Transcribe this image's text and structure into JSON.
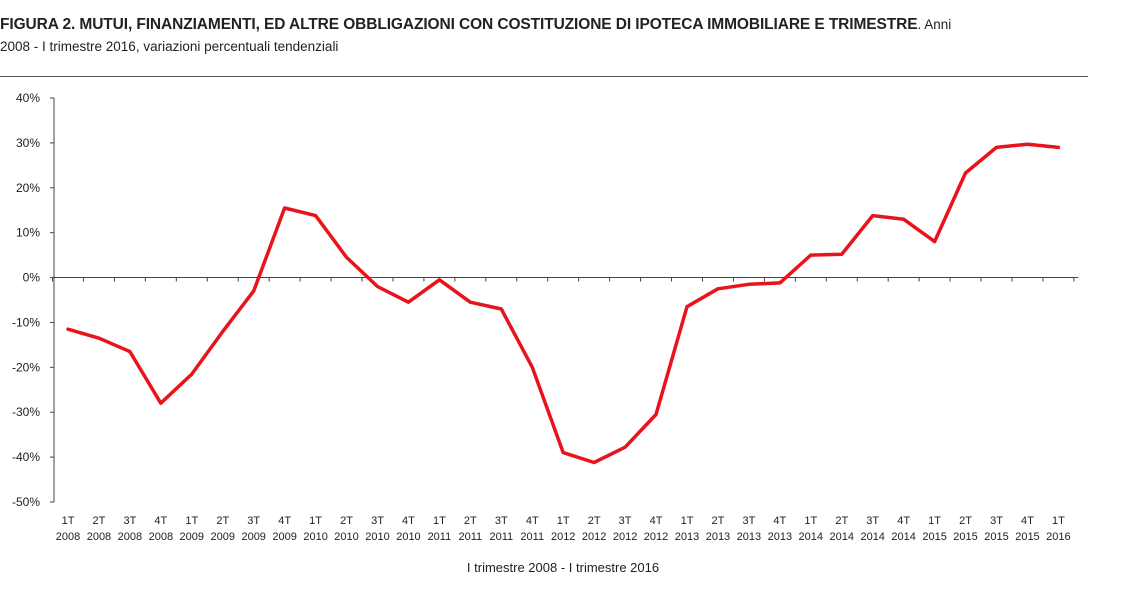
{
  "title_bold": "FIGURA 2. MUTUI, FINANZIAMENTI, ED ALTRE OBBLIGAZIONI CON COSTITUZIONE DI IPOTECA IMMOBILIARE E TRIMESTRE",
  "title_rest": ". Anni",
  "subtitle": "2008 - I trimestre 2016, variazioni percentuali tendenziali",
  "chart_data": {
    "type": "line",
    "xlabel": "I trimestre 2008 - I trimestre 2016",
    "ylabel": "",
    "ylim": [
      -50,
      40
    ],
    "yticks": [
      "40%",
      "30%",
      "20%",
      "10%",
      "0%",
      "-10%",
      "-20%",
      "-30%",
      "-40%",
      "-50%"
    ],
    "ytick_values": [
      40,
      30,
      20,
      10,
      0,
      -10,
      -20,
      -30,
      -40,
      -50
    ],
    "grid": false,
    "line_color": "#e8141c",
    "categories": [
      [
        "1T",
        "2008"
      ],
      [
        "2T",
        "2008"
      ],
      [
        "3T",
        "2008"
      ],
      [
        "4T",
        "2008"
      ],
      [
        "1T",
        "2009"
      ],
      [
        "2T",
        "2009"
      ],
      [
        "3T",
        "2009"
      ],
      [
        "4T",
        "2009"
      ],
      [
        "1T",
        "2010"
      ],
      [
        "2T",
        "2010"
      ],
      [
        "3T",
        "2010"
      ],
      [
        "4T",
        "2010"
      ],
      [
        "1T",
        "2011"
      ],
      [
        "2T",
        "2011"
      ],
      [
        "3T",
        "2011"
      ],
      [
        "4T",
        "2011"
      ],
      [
        "1T",
        "2012"
      ],
      [
        "2T",
        "2012"
      ],
      [
        "3T",
        "2012"
      ],
      [
        "4T",
        "2012"
      ],
      [
        "1T",
        "2013"
      ],
      [
        "2T",
        "2013"
      ],
      [
        "3T",
        "2013"
      ],
      [
        "4T",
        "2013"
      ],
      [
        "1T",
        "2014"
      ],
      [
        "2T",
        "2014"
      ],
      [
        "3T",
        "2014"
      ],
      [
        "4T",
        "2014"
      ],
      [
        "1T",
        "2015"
      ],
      [
        "2T",
        "2015"
      ],
      [
        "3T",
        "2015"
      ],
      [
        "4T",
        "2015"
      ],
      [
        "1T",
        "2016"
      ]
    ],
    "series": [
      {
        "values": [
          -11.5,
          -13.5,
          -16.5,
          -28.0,
          -21.5,
          -12.0,
          -3.0,
          15.5,
          13.8,
          4.5,
          -2.0,
          -5.5,
          -0.5,
          -5.5,
          -7.0,
          -20.0,
          -39.0,
          -41.2,
          -37.8,
          -30.5,
          -6.5,
          -2.5,
          -1.5,
          -1.2,
          5.0,
          5.2,
          13.8,
          13.0,
          8.0,
          23.3,
          29.0,
          29.7,
          29.0
        ]
      }
    ]
  }
}
